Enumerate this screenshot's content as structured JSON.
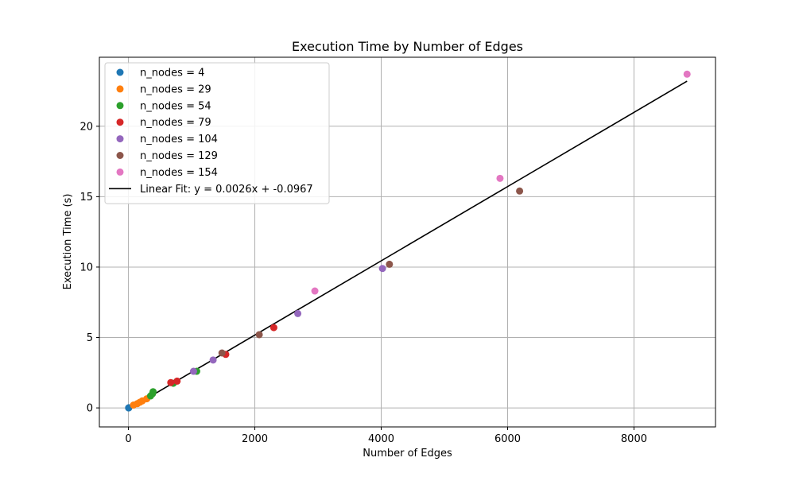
{
  "chart_data": {
    "type": "scatter",
    "title": "Execution Time by Number of Edges",
    "xlabel": "Number of Edges",
    "ylabel": "Execution Time (s)",
    "xlim": [
      -460,
      9290
    ],
    "ylim": [
      -1.35,
      24.9
    ],
    "xticks": [
      0,
      2000,
      4000,
      6000,
      8000
    ],
    "yticks": [
      0,
      5,
      10,
      15,
      20
    ],
    "grid": true,
    "legend_position": "top-left",
    "series": [
      {
        "name": "n_nodes = 4",
        "color": "#1f77b4",
        "x": [
          3,
          6
        ],
        "y": [
          0.0,
          0.01
        ]
      },
      {
        "name": "n_nodes = 29",
        "color": "#ff7f0e",
        "x": [
          80,
          140,
          180,
          220,
          290
        ],
        "y": [
          0.2,
          0.3,
          0.4,
          0.5,
          0.65
        ]
      },
      {
        "name": "n_nodes = 54",
        "color": "#2ca02c",
        "x": [
          350,
          380,
          390,
          710,
          1080
        ],
        "y": [
          0.85,
          1.0,
          1.15,
          1.75,
          2.6
        ]
      },
      {
        "name": "n_nodes = 79",
        "color": "#d62728",
        "x": [
          670,
          770,
          1540,
          2300
        ],
        "y": [
          1.8,
          1.9,
          3.8,
          5.7
        ]
      },
      {
        "name": "n_nodes = 104",
        "color": "#9467bd",
        "x": [
          1030,
          1340,
          2680,
          4020
        ],
        "y": [
          2.6,
          3.4,
          6.7,
          9.9
        ]
      },
      {
        "name": "n_nodes = 129",
        "color": "#8c564b",
        "x": [
          1480,
          2070,
          4130,
          6190
        ],
        "y": [
          3.9,
          5.2,
          10.2,
          15.4
        ]
      },
      {
        "name": "n_nodes = 154",
        "color": "#e377c2",
        "x": [
          2950,
          5880,
          8840
        ],
        "y": [
          8.3,
          16.3,
          23.7
        ]
      }
    ],
    "fit_line": {
      "name": "Linear Fit: y = 0.0026x + -0.0967",
      "color": "#000000",
      "x": [
        3,
        8840
      ],
      "y": [
        -0.089,
        23.2
      ]
    }
  }
}
